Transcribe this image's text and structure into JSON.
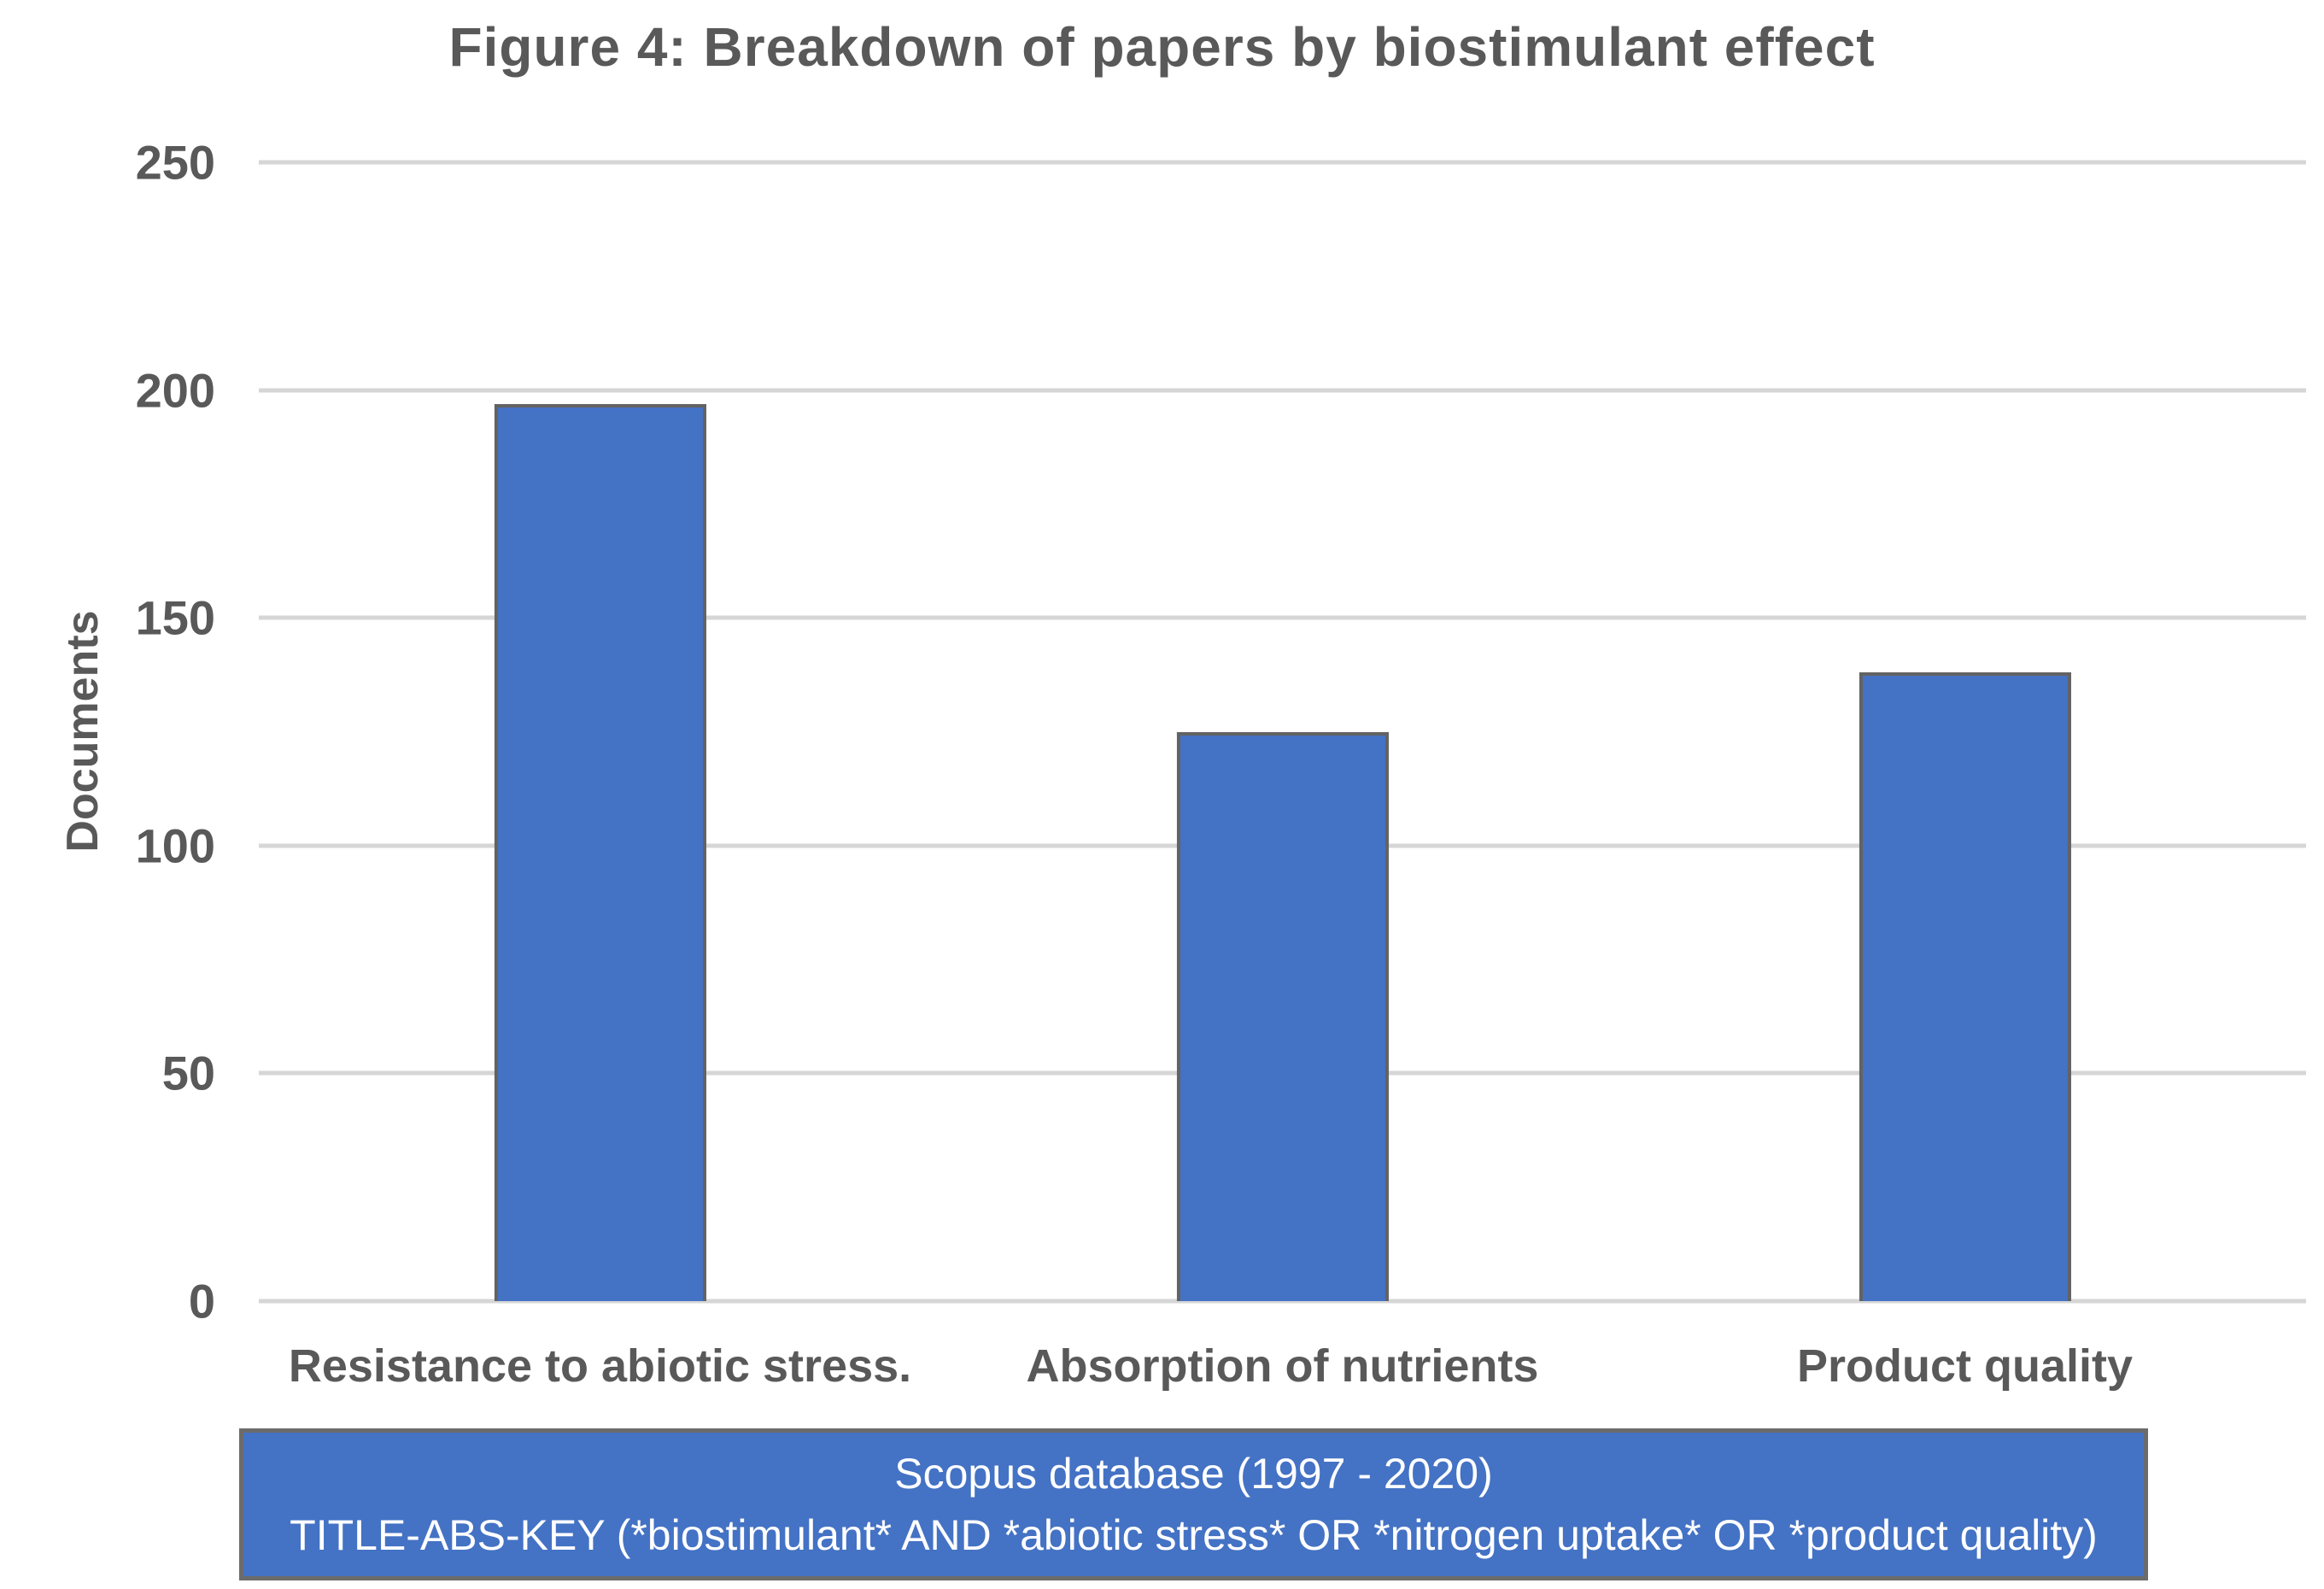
{
  "title": "Figure 4: Breakdown of papers by biostimulant effect",
  "chart_data": {
    "type": "bar",
    "categories": [
      "Resistance to abiotic stress.",
      "Absorption of nutrients",
      "Product quality"
    ],
    "values": [
      197,
      125,
      138
    ],
    "title": "Figure 4: Breakdown of papers by biostimulant effect",
    "xlabel": "",
    "ylabel": "Documents",
    "ylim": [
      0,
      250
    ],
    "yticks": [
      250,
      200,
      150,
      100,
      50,
      0
    ],
    "grid": true,
    "legend": "none",
    "bar_color": "#4472C4",
    "bar_border_color": "#636363",
    "gridline_color": "#D6D6D6",
    "axis_text_color": "#595959"
  },
  "caption": {
    "line1": "Scopus database (1997 - 2020)",
    "line2": "TITLE-ABS-KEY (*biostimulant* AND *abiotic stress* OR *nitrogen uptake* OR *product quality)",
    "bg_color": "#4472C4",
    "border_color": "#6B6B6B",
    "text_color": "#FFFFFF"
  }
}
